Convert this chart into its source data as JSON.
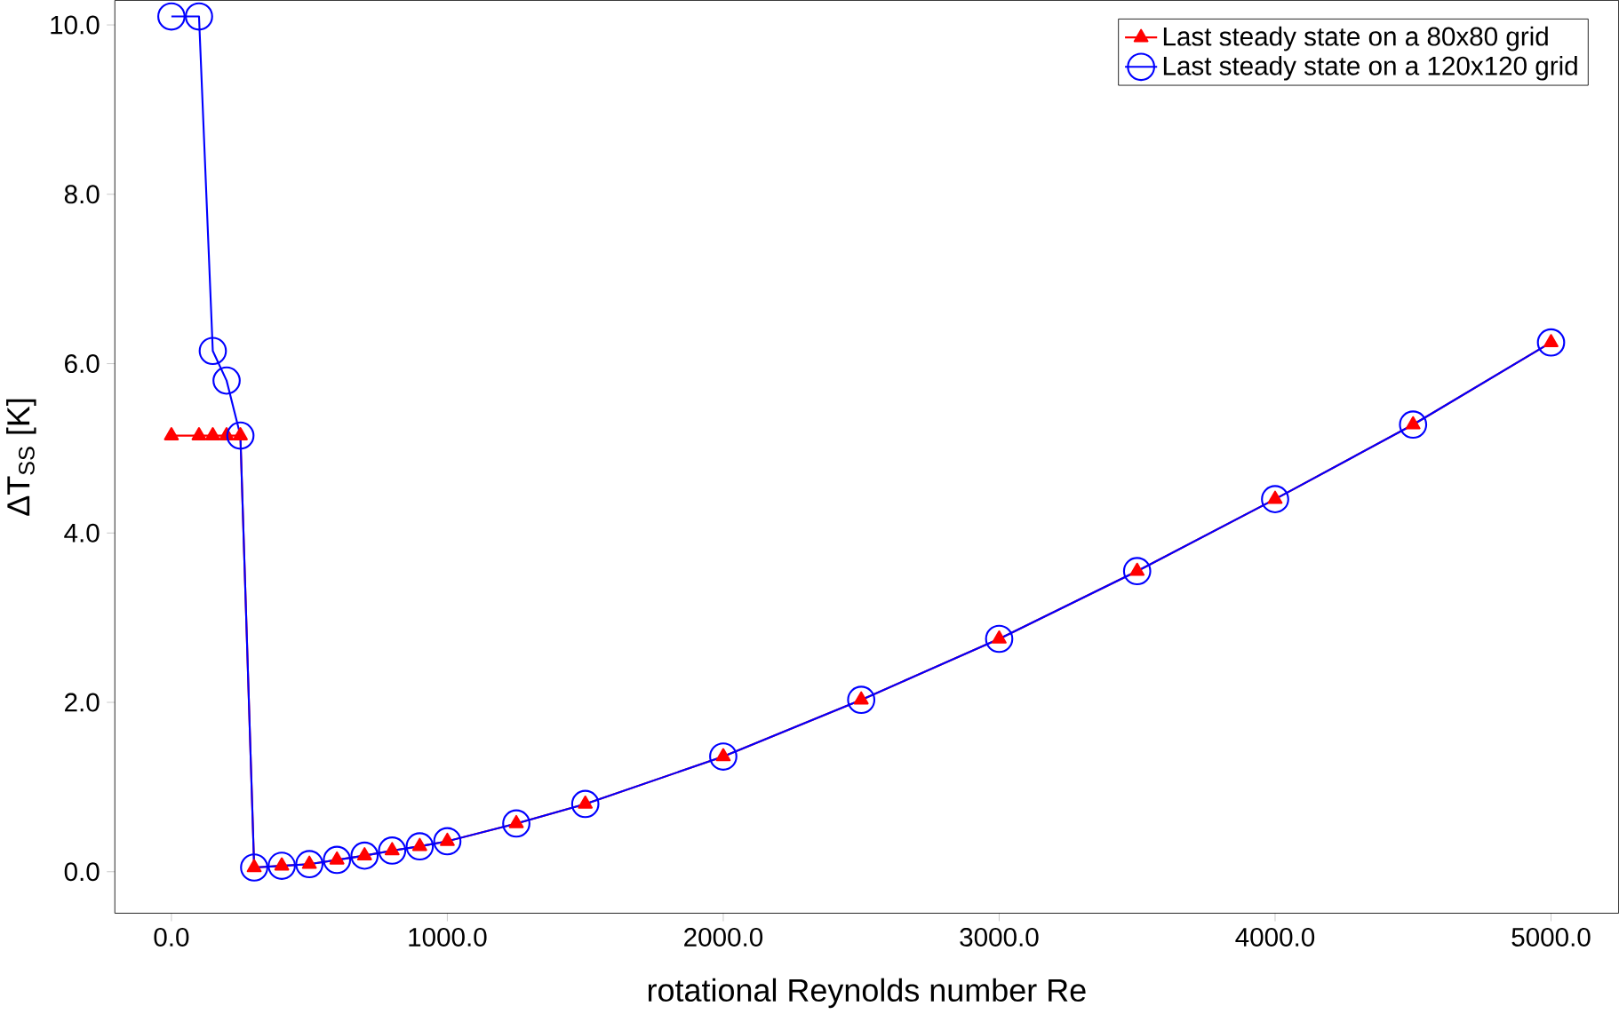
{
  "chart_data": {
    "type": "line",
    "xlabel": "rotational Reynolds number Re",
    "ylabel": "ΔT$_{SS}$ [K]",
    "xlim": [
      -205,
      5245
    ],
    "ylim": [
      -0.49,
      10.29
    ],
    "xticks": [
      {
        "value": 0,
        "label": "0.0"
      },
      {
        "value": 1000,
        "label": "1000.0"
      },
      {
        "value": 2000,
        "label": "2000.0"
      },
      {
        "value": 3000,
        "label": "3000.0"
      },
      {
        "value": 4000,
        "label": "4000.0"
      },
      {
        "value": 5000,
        "label": "5000.0"
      }
    ],
    "yticks": [
      {
        "value": 0,
        "label": "0.0"
      },
      {
        "value": 2,
        "label": "2.0"
      },
      {
        "value": 4,
        "label": "4.0"
      },
      {
        "value": 6,
        "label": "6.0"
      },
      {
        "value": 8,
        "label": "8.0"
      },
      {
        "value": 10,
        "label": "10.0"
      }
    ],
    "legend": "top right",
    "grid": false,
    "series": [
      {
        "name": "Last steady state on a 80x80 grid",
        "color": "#ff0000",
        "marker": "triangle",
        "x": [
          0,
          100,
          150,
          200,
          250,
          300,
          400,
          500,
          600,
          700,
          800,
          900,
          1000,
          1250,
          1500,
          2000,
          2500,
          3000,
          3500,
          4000,
          4500,
          5000
        ],
        "values": [
          5.15,
          5.15,
          5.15,
          5.15,
          5.15,
          0.05,
          0.07,
          0.09,
          0.14,
          0.19,
          0.25,
          0.3,
          0.36,
          0.57,
          0.8,
          1.36,
          2.03,
          2.75,
          3.55,
          4.4,
          5.28,
          6.25
        ]
      },
      {
        "name": "Last steady state on a 120x120 grid",
        "color": "#0000ff",
        "marker": "circle",
        "x": [
          0,
          100,
          150,
          200,
          250,
          300,
          400,
          500,
          600,
          700,
          800,
          900,
          1000,
          1250,
          1500,
          2000,
          2500,
          3000,
          3500,
          4000,
          4500,
          5000
        ],
        "values": [
          10.1,
          10.1,
          6.15,
          5.8,
          5.15,
          0.05,
          0.07,
          0.09,
          0.14,
          0.19,
          0.25,
          0.3,
          0.36,
          0.57,
          0.8,
          1.36,
          2.03,
          2.75,
          3.55,
          4.4,
          5.28,
          6.25
        ]
      }
    ]
  }
}
